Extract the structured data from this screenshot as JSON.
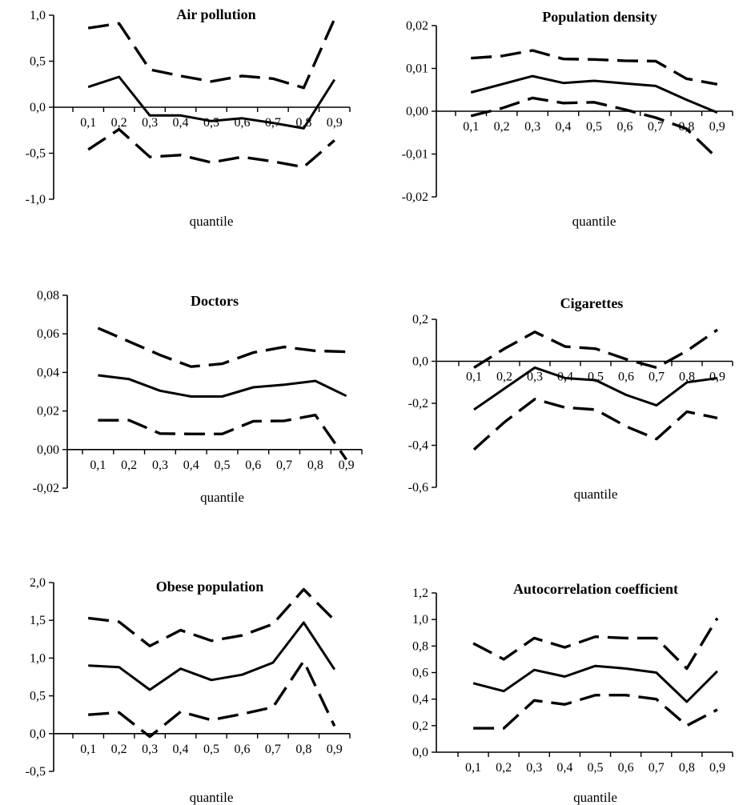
{
  "chart_data": [
    {
      "type": "line",
      "title": "Air pollution",
      "xlabel": "quantile",
      "categories": [
        "0,1",
        "0,2",
        "0,3",
        "0,4",
        "0,5",
        "0,6",
        "0,7",
        "0,8",
        "0,9"
      ],
      "yticks": [
        "-1,0",
        "-0,5",
        "0,0",
        "0,5",
        "1,0"
      ],
      "ylim": [
        -1.0,
        1.0
      ],
      "series": [
        {
          "style": "solid",
          "values": [
            0.22,
            0.33,
            -0.09,
            -0.09,
            -0.15,
            -0.12,
            -0.17,
            -0.23,
            0.3
          ]
        },
        {
          "style": "dashed",
          "values": [
            0.86,
            0.91,
            0.41,
            0.34,
            0.28,
            0.34,
            0.31,
            0.21,
            0.96
          ]
        },
        {
          "style": "dashed",
          "values": [
            -0.46,
            -0.24,
            -0.54,
            -0.52,
            -0.6,
            -0.54,
            -0.59,
            -0.65,
            -0.36
          ]
        }
      ]
    },
    {
      "type": "line",
      "title": "Population density",
      "xlabel": "quantile",
      "categories": [
        "0,1",
        "0,2",
        "0,3",
        "0,4",
        "0,5",
        "0,6",
        "0,7",
        "0,8",
        "0,9"
      ],
      "yticks": [
        "-0,02",
        "-0,01",
        "0,00",
        "0,01",
        "0,02"
      ],
      "ylim": [
        -0.02,
        0.02
      ],
      "series": [
        {
          "style": "solid",
          "values": [
            0.0044,
            0.0063,
            0.0082,
            0.0066,
            0.0071,
            0.0065,
            0.0059,
            0.0027,
            -0.0003
          ]
        },
        {
          "style": "dashed",
          "values": [
            0.0124,
            0.0129,
            0.0142,
            0.0122,
            0.0121,
            0.0118,
            0.0117,
            0.0076,
            0.0063
          ]
        },
        {
          "style": "dashed",
          "values": [
            -0.0011,
            0.0007,
            0.0031,
            0.0019,
            0.0021,
            0.0004,
            -0.0015,
            -0.0041,
            -0.011
          ]
        }
      ]
    },
    {
      "type": "line",
      "title": "Doctors",
      "xlabel": "quantile",
      "categories": [
        "0,1",
        "0,2",
        "0,3",
        "0,4",
        "0,5",
        "0,6",
        "0,7",
        "0,8",
        "0,9"
      ],
      "yticks": [
        "-0,02",
        "0,00",
        "0,02",
        "0,04",
        "0,06",
        "0,08"
      ],
      "ylim": [
        -0.02,
        0.08
      ],
      "series": [
        {
          "style": "solid",
          "values": [
            0.0385,
            0.0365,
            0.0305,
            0.0275,
            0.0275,
            0.0323,
            0.0336,
            0.0356,
            0.0278
          ]
        },
        {
          "style": "dashed",
          "values": [
            0.063,
            0.056,
            0.049,
            0.043,
            0.0445,
            0.0503,
            0.0532,
            0.0512,
            0.0507
          ]
        },
        {
          "style": "dashed",
          "values": [
            0.0152,
            0.0152,
            0.0083,
            0.0081,
            0.0081,
            0.0147,
            0.0149,
            0.0179,
            -0.0052
          ]
        }
      ]
    },
    {
      "type": "line",
      "title": "Cigarettes",
      "xlabel": "quantile",
      "categories": [
        "0,1",
        "0,2",
        "0,3",
        "0,4",
        "0,5",
        "0,6",
        "0,7",
        "0,8",
        "0,9"
      ],
      "yticks": [
        "-0,6",
        "-0,4",
        "-0,2",
        "0,0",
        "0,2"
      ],
      "ylim": [
        -0.6,
        0.2
      ],
      "series": [
        {
          "style": "solid",
          "values": [
            -0.23,
            -0.13,
            -0.03,
            -0.08,
            -0.09,
            -0.16,
            -0.21,
            -0.1,
            -0.08
          ]
        },
        {
          "style": "dashed",
          "values": [
            -0.03,
            0.06,
            0.14,
            0.07,
            0.06,
            0.01,
            -0.03,
            0.05,
            0.15
          ]
        },
        {
          "style": "dashed",
          "values": [
            -0.42,
            -0.29,
            -0.18,
            -0.22,
            -0.23,
            -0.31,
            -0.37,
            -0.24,
            -0.27
          ]
        }
      ]
    },
    {
      "type": "line",
      "title": "Obese population",
      "xlabel": "quantile",
      "categories": [
        "0,1",
        "0,2",
        "0,3",
        "0,4",
        "0,5",
        "0,6",
        "0,7",
        "0,8",
        "0,9"
      ],
      "yticks": [
        "-0,5",
        "0,0",
        "0,5",
        "1,0",
        "1,5",
        "2,0"
      ],
      "ylim": [
        -0.5,
        2.0
      ],
      "series": [
        {
          "style": "solid",
          "values": [
            0.9,
            0.88,
            0.58,
            0.86,
            0.71,
            0.78,
            0.94,
            1.47,
            0.85
          ]
        },
        {
          "style": "dashed",
          "values": [
            1.53,
            1.48,
            1.16,
            1.37,
            1.23,
            1.3,
            1.45,
            1.91,
            1.5
          ]
        },
        {
          "style": "dashed",
          "values": [
            0.25,
            0.28,
            -0.04,
            0.29,
            0.18,
            0.26,
            0.35,
            0.96,
            0.1
          ]
        }
      ]
    },
    {
      "type": "line",
      "title": "Autocorrelation coefficient",
      "xlabel": "quantile",
      "categories": [
        "0,1",
        "0,2",
        "0,3",
        "0,4",
        "0,5",
        "0,6",
        "0,7",
        "0,8",
        "0,9"
      ],
      "yticks": [
        "0,0",
        "0,2",
        "0,4",
        "0,6",
        "0,8",
        "1,0",
        "1,2"
      ],
      "ylim": [
        0.0,
        1.2
      ],
      "series": [
        {
          "style": "solid",
          "values": [
            0.52,
            0.46,
            0.62,
            0.57,
            0.65,
            0.63,
            0.6,
            0.38,
            0.61
          ]
        },
        {
          "style": "dashed",
          "values": [
            0.82,
            0.7,
            0.86,
            0.79,
            0.87,
            0.86,
            0.86,
            0.63,
            1.01
          ]
        },
        {
          "style": "dashed",
          "values": [
            0.18,
            0.18,
            0.39,
            0.36,
            0.43,
            0.43,
            0.4,
            0.2,
            0.32
          ]
        }
      ]
    }
  ]
}
